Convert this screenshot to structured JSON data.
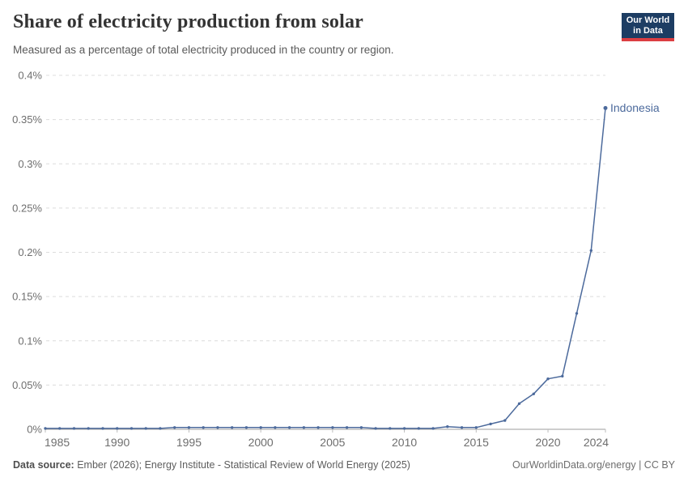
{
  "header": {
    "title": "Share of electricity production from solar",
    "subtitle": "Measured as a percentage of total electricity produced in the country or region.",
    "logo": {
      "text": "Our World\nin Data",
      "bg_color": "#1d3d63",
      "accent_color": "#dc3e42"
    }
  },
  "chart_data": {
    "type": "line",
    "title": "Share of electricity production from solar",
    "xlabel": "",
    "ylabel": "",
    "xlim": [
      1985,
      2024
    ],
    "ylim": [
      0,
      0.4
    ],
    "grid": "horizontal-dashed",
    "legend_position": "end-of-line-label",
    "x_ticks": [
      1985,
      1990,
      1995,
      2000,
      2005,
      2010,
      2015,
      2020,
      2024
    ],
    "x_tick_labels": [
      "1985",
      "1990",
      "1995",
      "2000",
      "2005",
      "2010",
      "2015",
      "2020",
      "2024"
    ],
    "y_ticks": [
      0,
      0.05,
      0.1,
      0.15,
      0.2,
      0.25,
      0.3,
      0.35,
      0.4
    ],
    "y_tick_labels": [
      "0%",
      "0.05%",
      "0.1%",
      "0.15%",
      "0.2%",
      "0.25%",
      "0.3%",
      "0.35%",
      "0.4%"
    ],
    "series": [
      {
        "name": "Indonesia",
        "color": "#4C6A9C",
        "x": [
          1985,
          1986,
          1987,
          1988,
          1989,
          1990,
          1991,
          1992,
          1993,
          1994,
          1995,
          1996,
          1997,
          1998,
          1999,
          2000,
          2001,
          2002,
          2003,
          2004,
          2005,
          2006,
          2007,
          2008,
          2009,
          2010,
          2011,
          2012,
          2013,
          2014,
          2015,
          2016,
          2017,
          2018,
          2019,
          2020,
          2021,
          2022,
          2023,
          2024
        ],
        "values": [
          0.001,
          0.001,
          0.001,
          0.001,
          0.001,
          0.001,
          0.001,
          0.001,
          0.001,
          0.002,
          0.002,
          0.002,
          0.002,
          0.002,
          0.002,
          0.002,
          0.002,
          0.002,
          0.002,
          0.002,
          0.002,
          0.002,
          0.002,
          0.001,
          0.001,
          0.001,
          0.001,
          0.001,
          0.003,
          0.002,
          0.002,
          0.006,
          0.01,
          0.029,
          0.04,
          0.057,
          0.06,
          0.131,
          0.202,
          0.363
        ]
      }
    ],
    "colors": {
      "gridline": "#dcdcdc",
      "axis_line": "#9e9e9e",
      "tick_mark": "#bdbdbd"
    }
  },
  "footer": {
    "source_label": "Data source:",
    "source_text": " Ember (2026); Energy Institute - Statistical Review of World Energy (2025)",
    "link_text": "OurWorldinData.org/energy | CC BY"
  }
}
